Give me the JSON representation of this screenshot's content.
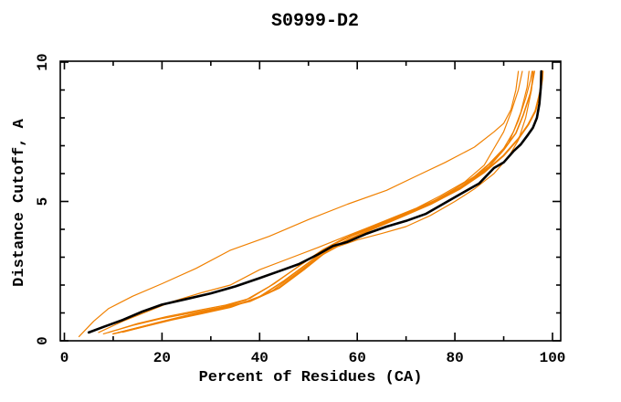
{
  "figure": {
    "title": "S0999-D2"
  },
  "chart_data": {
    "type": "line",
    "title": "S0999-D2",
    "xlabel": "Percent of Residues (CA)",
    "ylabel": "Distance Cutoff, A",
    "xlim": [
      0,
      100
    ],
    "ylim": [
      0,
      10
    ],
    "x_major_ticks": [
      0,
      20,
      40,
      60,
      80,
      100
    ],
    "x_minor_ticks": [
      10,
      30,
      50,
      70,
      90
    ],
    "y_major_ticks": [
      0,
      5,
      10
    ],
    "y_minor_ticks": [
      1,
      2,
      3,
      4,
      6,
      7,
      8,
      9
    ],
    "grid": false,
    "legend": "none",
    "frame": "box-with-inward-ticks",
    "colors": {
      "orange_series": "#f08000",
      "black_series": "#000000",
      "axis": "#000000",
      "background": "#ffffff"
    },
    "series": [
      {
        "name": "orange-curve-1-topmost",
        "color": "#f08000",
        "width": 1.2,
        "points": [
          [
            3,
            0.15
          ],
          [
            6,
            0.7
          ],
          [
            9,
            1.15
          ],
          [
            14,
            1.6
          ],
          [
            20,
            2.05
          ],
          [
            27,
            2.6
          ],
          [
            34,
            3.25
          ],
          [
            42,
            3.75
          ],
          [
            50,
            4.35
          ],
          [
            58,
            4.9
          ],
          [
            66,
            5.4
          ],
          [
            72,
            5.9
          ],
          [
            78,
            6.4
          ],
          [
            84,
            6.95
          ],
          [
            88,
            7.5
          ],
          [
            90,
            7.8
          ],
          [
            91.5,
            8.3
          ],
          [
            92.5,
            9.0
          ],
          [
            93,
            9.67
          ]
        ]
      },
      {
        "name": "orange-curve-2",
        "color": "#f08000",
        "width": 1.2,
        "points": [
          [
            7,
            0.3
          ],
          [
            12,
            0.7
          ],
          [
            17,
            1.05
          ],
          [
            22,
            1.4
          ],
          [
            28,
            1.72
          ],
          [
            34,
            2.0
          ],
          [
            40,
            2.55
          ],
          [
            46,
            2.95
          ],
          [
            52,
            3.35
          ],
          [
            57,
            3.7
          ],
          [
            62,
            4.05
          ],
          [
            67,
            4.4
          ],
          [
            72,
            4.75
          ],
          [
            77,
            5.2
          ],
          [
            82,
            5.7
          ],
          [
            86,
            6.3
          ],
          [
            88,
            6.9
          ],
          [
            90,
            7.5
          ],
          [
            91.5,
            8.2
          ],
          [
            93,
            9.0
          ],
          [
            93.8,
            9.67
          ]
        ]
      },
      {
        "name": "orange-curve-3",
        "color": "#f08000",
        "width": 1.2,
        "points": [
          [
            8,
            0.25
          ],
          [
            14,
            0.55
          ],
          [
            20,
            0.8
          ],
          [
            26,
            1.0
          ],
          [
            32,
            1.2
          ],
          [
            37,
            1.45
          ],
          [
            42,
            1.95
          ],
          [
            47,
            2.55
          ],
          [
            52,
            3.15
          ],
          [
            56,
            3.55
          ],
          [
            60,
            3.85
          ],
          [
            65,
            4.2
          ],
          [
            70,
            4.55
          ],
          [
            75,
            4.95
          ],
          [
            80,
            5.45
          ],
          [
            84,
            5.9
          ],
          [
            87,
            6.35
          ],
          [
            90,
            6.9
          ],
          [
            92,
            7.5
          ],
          [
            93.5,
            8.2
          ],
          [
            94.8,
            9.1
          ],
          [
            95.2,
            9.67
          ]
        ]
      },
      {
        "name": "orange-curve-4",
        "color": "#f08000",
        "width": 1.2,
        "points": [
          [
            9,
            0.3
          ],
          [
            15,
            0.62
          ],
          [
            21,
            0.87
          ],
          [
            27,
            1.08
          ],
          [
            33,
            1.28
          ],
          [
            38,
            1.52
          ],
          [
            43,
            2.05
          ],
          [
            48,
            2.68
          ],
          [
            53,
            3.28
          ],
          [
            57,
            3.65
          ],
          [
            61,
            3.95
          ],
          [
            66,
            4.3
          ],
          [
            71,
            4.65
          ],
          [
            76,
            5.05
          ],
          [
            81,
            5.5
          ],
          [
            85,
            6.0
          ],
          [
            88,
            6.5
          ],
          [
            91,
            7.1
          ],
          [
            93,
            7.9
          ],
          [
            94.5,
            8.7
          ],
          [
            95.5,
            9.35
          ],
          [
            95.8,
            9.67
          ]
        ]
      },
      {
        "name": "orange-curve-5",
        "color": "#f08000",
        "width": 1.6,
        "points": [
          [
            10,
            0.25
          ],
          [
            16,
            0.5
          ],
          [
            22,
            0.75
          ],
          [
            28,
            0.97
          ],
          [
            34,
            1.2
          ],
          [
            40,
            1.58
          ],
          [
            45,
            2.15
          ],
          [
            50,
            2.8
          ],
          [
            55,
            3.45
          ],
          [
            59,
            3.78
          ],
          [
            63,
            4.05
          ],
          [
            68,
            4.45
          ],
          [
            73,
            4.8
          ],
          [
            78,
            5.2
          ],
          [
            83,
            5.7
          ],
          [
            87,
            6.25
          ],
          [
            90,
            6.85
          ],
          [
            92.5,
            7.45
          ],
          [
            94,
            8.1
          ],
          [
            95.5,
            8.9
          ],
          [
            96.3,
            9.67
          ]
        ]
      },
      {
        "name": "orange-curve-6",
        "color": "#f08000",
        "width": 1.2,
        "points": [
          [
            11,
            0.3
          ],
          [
            18,
            0.6
          ],
          [
            25,
            0.9
          ],
          [
            31,
            1.12
          ],
          [
            37,
            1.38
          ],
          [
            42,
            1.72
          ],
          [
            47,
            2.35
          ],
          [
            52,
            3.0
          ],
          [
            56,
            3.38
          ],
          [
            60,
            3.62
          ],
          [
            65,
            3.85
          ],
          [
            70,
            4.1
          ],
          [
            75,
            4.5
          ],
          [
            80,
            5.0
          ],
          [
            84,
            5.45
          ],
          [
            88,
            6.0
          ],
          [
            91,
            6.6
          ],
          [
            93,
            7.2
          ],
          [
            94.5,
            8.0
          ],
          [
            95.7,
            9.0
          ],
          [
            96,
            9.67
          ]
        ]
      },
      {
        "name": "orange-curve-7-rightmost",
        "color": "#f08000",
        "width": 2.0,
        "points": [
          [
            12,
            0.32
          ],
          [
            19,
            0.64
          ],
          [
            26,
            0.94
          ],
          [
            32,
            1.17
          ],
          [
            38,
            1.42
          ],
          [
            44,
            1.9
          ],
          [
            49,
            2.55
          ],
          [
            54,
            3.25
          ],
          [
            58,
            3.62
          ],
          [
            63,
            4.0
          ],
          [
            69,
            4.45
          ],
          [
            75,
            4.9
          ],
          [
            81,
            5.45
          ],
          [
            86,
            6.05
          ],
          [
            90,
            6.65
          ],
          [
            93,
            7.25
          ],
          [
            95,
            7.75
          ],
          [
            96.5,
            8.25
          ],
          [
            97.5,
            8.95
          ],
          [
            97.9,
            9.4
          ],
          [
            98,
            9.67
          ]
        ]
      },
      {
        "name": "black-main-curve",
        "color": "#000000",
        "width": 2.6,
        "points": [
          [
            5,
            0.3
          ],
          [
            8,
            0.5
          ],
          [
            12,
            0.75
          ],
          [
            16,
            1.05
          ],
          [
            20,
            1.3
          ],
          [
            25,
            1.5
          ],
          [
            30,
            1.7
          ],
          [
            35,
            1.95
          ],
          [
            40,
            2.25
          ],
          [
            44,
            2.5
          ],
          [
            48,
            2.75
          ],
          [
            52,
            3.1
          ],
          [
            55,
            3.4
          ],
          [
            58,
            3.55
          ],
          [
            62,
            3.85
          ],
          [
            66,
            4.1
          ],
          [
            70,
            4.3
          ],
          [
            74,
            4.55
          ],
          [
            78,
            4.95
          ],
          [
            82,
            5.35
          ],
          [
            85,
            5.65
          ],
          [
            88,
            6.2
          ],
          [
            90,
            6.4
          ],
          [
            92,
            6.8
          ],
          [
            93.5,
            7.05
          ],
          [
            95,
            7.4
          ],
          [
            96,
            7.65
          ],
          [
            96.8,
            8.0
          ],
          [
            97.3,
            8.5
          ],
          [
            97.6,
            9.1
          ],
          [
            97.7,
            9.67
          ]
        ]
      }
    ]
  }
}
